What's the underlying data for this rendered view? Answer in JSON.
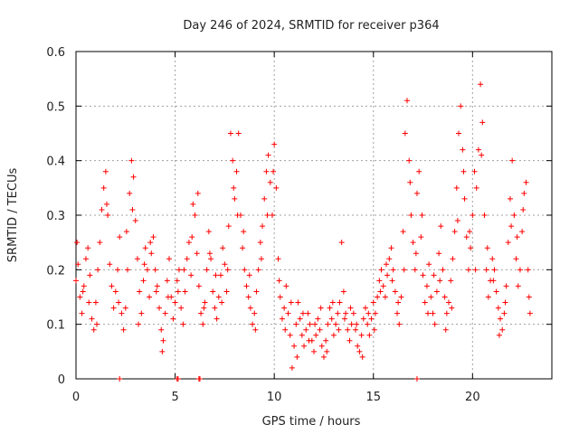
{
  "chart_data": {
    "type": "scatter",
    "title": "Day 246 of 2024, SRMTID for receiver p364",
    "xlabel": "GPS time / hours",
    "ylabel": "SRMTID / TECUs",
    "xlim": [
      0,
      24
    ],
    "ylim": [
      0,
      0.6
    ],
    "xticks": [
      0,
      5,
      10,
      15,
      20
    ],
    "yticks": [
      0,
      0.1,
      0.2,
      0.3,
      0.4,
      0.5,
      0.6
    ],
    "xtick_labels": [
      "0",
      "5",
      "10",
      "15",
      "20"
    ],
    "ytick_labels": [
      "0",
      "0.1",
      "0.2",
      "0.3",
      "0.4",
      "0.5",
      "0.6"
    ],
    "grid": true,
    "marker": "plus",
    "series": [
      {
        "name": "SRMTID",
        "color": "#ff0000",
        "points": [
          [
            0.0,
            0.18
          ],
          [
            0.1,
            0.21
          ],
          [
            0.2,
            0.15
          ],
          [
            0.3,
            0.12
          ],
          [
            0.4,
            0.17
          ],
          [
            0.5,
            0.22
          ],
          [
            0.6,
            0.24
          ],
          [
            0.7,
            0.19
          ],
          [
            0.8,
            0.11
          ],
          [
            0.9,
            0.09
          ],
          [
            1.0,
            0.14
          ],
          [
            1.1,
            0.2
          ],
          [
            1.2,
            0.25
          ],
          [
            1.3,
            0.31
          ],
          [
            1.4,
            0.35
          ],
          [
            1.5,
            0.38
          ],
          [
            1.6,
            0.3
          ],
          [
            1.7,
            0.21
          ],
          [
            1.8,
            0.17
          ],
          [
            1.9,
            0.13
          ],
          [
            2.0,
            0.16
          ],
          [
            2.1,
            0.2
          ],
          [
            2.2,
            0.26
          ],
          [
            2.3,
            0.12
          ],
          [
            2.4,
            0.09
          ],
          [
            2.5,
            0.13
          ],
          [
            2.6,
            0.2
          ],
          [
            2.7,
            0.34
          ],
          [
            2.8,
            0.4
          ],
          [
            2.9,
            0.37
          ],
          [
            3.0,
            0.29
          ],
          [
            3.1,
            0.22
          ],
          [
            3.2,
            0.16
          ],
          [
            3.3,
            0.12
          ],
          [
            3.4,
            0.18
          ],
          [
            3.5,
            0.24
          ],
          [
            3.6,
            0.2
          ],
          [
            3.7,
            0.15
          ],
          [
            3.8,
            0.23
          ],
          [
            3.9,
            0.26
          ],
          [
            4.0,
            0.2
          ],
          [
            4.1,
            0.17
          ],
          [
            4.2,
            0.13
          ],
          [
            4.3,
            0.09
          ],
          [
            4.4,
            0.07
          ],
          [
            4.5,
            0.12
          ],
          [
            4.6,
            0.18
          ],
          [
            4.7,
            0.22
          ],
          [
            4.8,
            0.15
          ],
          [
            4.9,
            0.11
          ],
          [
            5.0,
            0.14
          ],
          [
            5.1,
            0.18
          ],
          [
            5.2,
            0.2
          ],
          [
            5.3,
            0.13
          ],
          [
            5.4,
            0.1
          ],
          [
            5.5,
            0.16
          ],
          [
            5.6,
            0.22
          ],
          [
            5.7,
            0.25
          ],
          [
            5.8,
            0.19
          ],
          [
            5.9,
            0.32
          ],
          [
            6.0,
            0.3
          ],
          [
            6.1,
            0.23
          ],
          [
            6.2,
            0.17
          ],
          [
            6.3,
            0.12
          ],
          [
            6.4,
            0.1
          ],
          [
            6.5,
            0.14
          ],
          [
            6.6,
            0.2
          ],
          [
            6.7,
            0.27
          ],
          [
            6.8,
            0.22
          ],
          [
            6.9,
            0.16
          ],
          [
            7.0,
            0.13
          ],
          [
            7.1,
            0.11
          ],
          [
            7.2,
            0.15
          ],
          [
            7.3,
            0.19
          ],
          [
            7.4,
            0.24
          ],
          [
            7.5,
            0.21
          ],
          [
            7.6,
            0.16
          ],
          [
            7.7,
            0.28
          ],
          [
            7.8,
            0.45
          ],
          [
            7.9,
            0.4
          ],
          [
            8.0,
            0.33
          ],
          [
            8.1,
            0.38
          ],
          [
            8.2,
            0.45
          ],
          [
            8.3,
            0.3
          ],
          [
            8.4,
            0.24
          ],
          [
            8.5,
            0.2
          ],
          [
            8.6,
            0.17
          ],
          [
            8.7,
            0.15
          ],
          [
            8.8,
            0.13
          ],
          [
            8.9,
            0.1
          ],
          [
            9.0,
            0.12
          ],
          [
            9.1,
            0.16
          ],
          [
            9.2,
            0.2
          ],
          [
            9.3,
            0.25
          ],
          [
            9.4,
            0.28
          ],
          [
            9.5,
            0.33
          ],
          [
            9.6,
            0.38
          ],
          [
            9.7,
            0.41
          ],
          [
            9.8,
            0.36
          ],
          [
            9.9,
            0.3
          ],
          [
            10.0,
            0.43
          ],
          [
            10.1,
            0.35
          ],
          [
            10.2,
            0.22
          ],
          [
            10.3,
            0.15
          ],
          [
            10.4,
            0.11
          ],
          [
            10.5,
            0.13
          ],
          [
            10.6,
            0.17
          ],
          [
            10.7,
            0.12
          ],
          [
            10.8,
            0.08
          ],
          [
            10.9,
            0.02
          ],
          [
            11.0,
            0.06
          ],
          [
            11.1,
            0.1
          ],
          [
            11.2,
            0.14
          ],
          [
            11.3,
            0.11
          ],
          [
            11.4,
            0.08
          ],
          [
            11.5,
            0.06
          ],
          [
            11.6,
            0.09
          ],
          [
            11.7,
            0.12
          ],
          [
            11.8,
            0.1
          ],
          [
            11.9,
            0.07
          ],
          [
            12.0,
            0.05
          ],
          [
            12.1,
            0.08
          ],
          [
            12.2,
            0.11
          ],
          [
            12.3,
            0.09
          ],
          [
            12.4,
            0.06
          ],
          [
            12.5,
            0.04
          ],
          [
            12.6,
            0.07
          ],
          [
            12.7,
            0.1
          ],
          [
            12.8,
            0.13
          ],
          [
            12.9,
            0.11
          ],
          [
            13.0,
            0.08
          ],
          [
            13.1,
            0.1
          ],
          [
            13.2,
            0.12
          ],
          [
            13.3,
            0.14
          ],
          [
            13.4,
            0.25
          ],
          [
            13.5,
            0.16
          ],
          [
            13.6,
            0.12
          ],
          [
            13.7,
            0.09
          ],
          [
            13.8,
            0.07
          ],
          [
            13.9,
            0.1
          ],
          [
            14.0,
            0.12
          ],
          [
            14.1,
            0.09
          ],
          [
            14.2,
            0.06
          ],
          [
            14.3,
            0.05
          ],
          [
            14.4,
            0.08
          ],
          [
            14.5,
            0.11
          ],
          [
            14.6,
            0.13
          ],
          [
            14.7,
            0.1
          ],
          [
            14.8,
            0.08
          ],
          [
            14.9,
            0.11
          ],
          [
            15.0,
            0.14
          ],
          [
            15.1,
            0.12
          ],
          [
            15.2,
            0.15
          ],
          [
            15.3,
            0.18
          ],
          [
            15.4,
            0.2
          ],
          [
            15.5,
            0.17
          ],
          [
            15.6,
            0.15
          ],
          [
            15.7,
            0.19
          ],
          [
            15.8,
            0.22
          ],
          [
            15.9,
            0.24
          ],
          [
            16.0,
            0.2
          ],
          [
            16.1,
            0.16
          ],
          [
            16.2,
            0.12
          ],
          [
            16.3,
            0.1
          ],
          [
            16.4,
            0.15
          ],
          [
            16.5,
            0.27
          ],
          [
            16.6,
            0.45
          ],
          [
            16.7,
            0.51
          ],
          [
            16.8,
            0.4
          ],
          [
            16.9,
            0.3
          ],
          [
            17.0,
            0.25
          ],
          [
            17.1,
            0.2
          ],
          [
            17.2,
            0.34
          ],
          [
            17.3,
            0.38
          ],
          [
            17.4,
            0.26
          ],
          [
            17.5,
            0.19
          ],
          [
            17.6,
            0.14
          ],
          [
            17.7,
            0.17
          ],
          [
            17.8,
            0.21
          ],
          [
            17.9,
            0.15
          ],
          [
            18.0,
            0.12
          ],
          [
            18.1,
            0.1
          ],
          [
            18.2,
            0.16
          ],
          [
            18.3,
            0.23
          ],
          [
            18.4,
            0.28
          ],
          [
            18.5,
            0.2
          ],
          [
            18.6,
            0.15
          ],
          [
            18.7,
            0.12
          ],
          [
            18.8,
            0.14
          ],
          [
            18.9,
            0.18
          ],
          [
            19.0,
            0.22
          ],
          [
            19.1,
            0.27
          ],
          [
            19.2,
            0.35
          ],
          [
            19.3,
            0.45
          ],
          [
            19.4,
            0.5
          ],
          [
            19.5,
            0.42
          ],
          [
            19.6,
            0.33
          ],
          [
            19.7,
            0.26
          ],
          [
            19.8,
            0.2
          ],
          [
            19.9,
            0.24
          ],
          [
            20.0,
            0.3
          ],
          [
            20.1,
            0.38
          ],
          [
            20.2,
            0.35
          ],
          [
            20.3,
            0.42
          ],
          [
            20.4,
            0.54
          ],
          [
            20.5,
            0.47
          ],
          [
            20.6,
            0.3
          ],
          [
            20.7,
            0.2
          ],
          [
            20.8,
            0.15
          ],
          [
            20.9,
            0.18
          ],
          [
            21.0,
            0.22
          ],
          [
            21.1,
            0.2
          ],
          [
            21.2,
            0.16
          ],
          [
            21.3,
            0.13
          ],
          [
            21.4,
            0.11
          ],
          [
            21.5,
            0.09
          ],
          [
            21.6,
            0.12
          ],
          [
            21.7,
            0.17
          ],
          [
            21.8,
            0.25
          ],
          [
            21.9,
            0.33
          ],
          [
            22.0,
            0.4
          ],
          [
            22.1,
            0.3
          ],
          [
            22.2,
            0.22
          ],
          [
            22.3,
            0.17
          ],
          [
            22.4,
            0.2
          ],
          [
            22.5,
            0.27
          ],
          [
            22.6,
            0.34
          ],
          [
            22.7,
            0.36
          ],
          [
            22.8,
            0.2
          ],
          [
            22.9,
            0.12
          ],
          [
            0.05,
            0.25
          ],
          [
            0.35,
            0.16
          ],
          [
            0.65,
            0.14
          ],
          [
            1.05,
            0.1
          ],
          [
            1.55,
            0.32
          ],
          [
            2.15,
            0.14
          ],
          [
            2.55,
            0.27
          ],
          [
            2.85,
            0.31
          ],
          [
            3.15,
            0.1
          ],
          [
            3.45,
            0.21
          ],
          [
            3.75,
            0.25
          ],
          [
            4.05,
            0.16
          ],
          [
            4.35,
            0.05
          ],
          [
            4.65,
            0.15
          ],
          [
            5.15,
            0.16
          ],
          [
            5.45,
            0.2
          ],
          [
            5.85,
            0.26
          ],
          [
            6.15,
            0.34
          ],
          [
            6.45,
            0.13
          ],
          [
            6.75,
            0.23
          ],
          [
            7.05,
            0.19
          ],
          [
            7.35,
            0.14
          ],
          [
            7.65,
            0.2
          ],
          [
            7.95,
            0.35
          ],
          [
            8.15,
            0.3
          ],
          [
            8.45,
            0.27
          ],
          [
            8.75,
            0.19
          ],
          [
            9.05,
            0.09
          ],
          [
            9.35,
            0.22
          ],
          [
            9.65,
            0.3
          ],
          [
            9.95,
            0.38
          ],
          [
            10.25,
            0.18
          ],
          [
            10.55,
            0.09
          ],
          [
            10.85,
            0.14
          ],
          [
            11.15,
            0.04
          ],
          [
            11.45,
            0.12
          ],
          [
            11.75,
            0.07
          ],
          [
            12.05,
            0.1
          ],
          [
            12.35,
            0.13
          ],
          [
            12.65,
            0.05
          ],
          [
            12.95,
            0.14
          ],
          [
            13.25,
            0.09
          ],
          [
            13.55,
            0.11
          ],
          [
            13.85,
            0.13
          ],
          [
            14.15,
            0.1
          ],
          [
            14.45,
            0.04
          ],
          [
            14.75,
            0.12
          ],
          [
            15.05,
            0.09
          ],
          [
            15.35,
            0.16
          ],
          [
            15.65,
            0.21
          ],
          [
            15.95,
            0.18
          ],
          [
            16.25,
            0.14
          ],
          [
            16.55,
            0.2
          ],
          [
            16.85,
            0.36
          ],
          [
            17.15,
            0.23
          ],
          [
            17.45,
            0.3
          ],
          [
            17.75,
            0.12
          ],
          [
            18.05,
            0.19
          ],
          [
            18.35,
            0.18
          ],
          [
            18.65,
            0.09
          ],
          [
            18.95,
            0.13
          ],
          [
            19.25,
            0.29
          ],
          [
            19.55,
            0.38
          ],
          [
            19.85,
            0.27
          ],
          [
            20.15,
            0.2
          ],
          [
            20.45,
            0.41
          ],
          [
            20.75,
            0.24
          ],
          [
            21.05,
            0.18
          ],
          [
            21.35,
            0.08
          ],
          [
            21.65,
            0.14
          ],
          [
            21.95,
            0.28
          ],
          [
            22.25,
            0.26
          ],
          [
            22.55,
            0.31
          ],
          [
            22.85,
            0.15
          ],
          [
            2.2,
            0.0
          ],
          [
            5.1,
            0.0
          ],
          [
            5.15,
            0.0
          ],
          [
            6.2,
            0.0
          ],
          [
            6.25,
            0.0
          ],
          [
            17.2,
            0.0
          ]
        ]
      }
    ]
  }
}
